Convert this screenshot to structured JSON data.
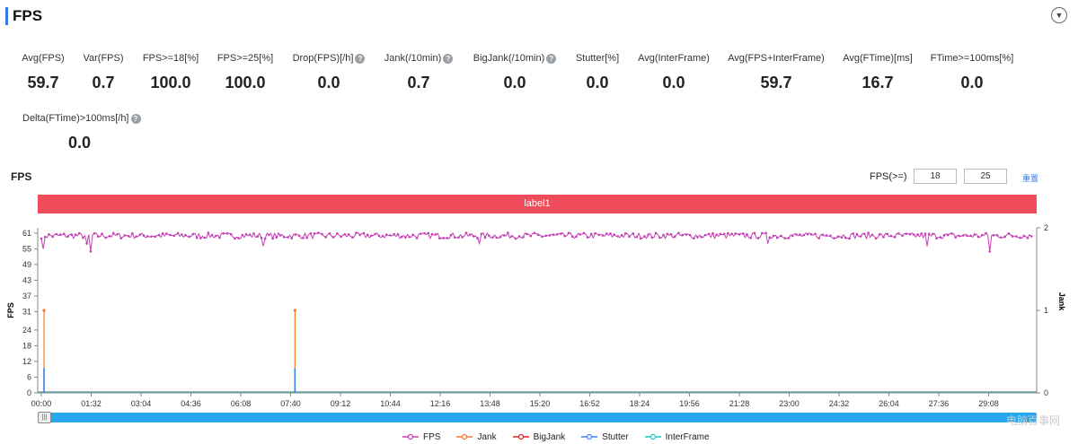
{
  "header": {
    "title": "FPS",
    "collapse_icon": "chevron-down-icon"
  },
  "metrics": [
    {
      "label": "Avg(FPS)",
      "value": "59.7",
      "help": false
    },
    {
      "label": "Var(FPS)",
      "value": "0.7",
      "help": false
    },
    {
      "label": "FPS>=18[%]",
      "value": "100.0",
      "help": false
    },
    {
      "label": "FPS>=25[%]",
      "value": "100.0",
      "help": false
    },
    {
      "label": "Drop(FPS)[/h]",
      "value": "0.0",
      "help": true
    },
    {
      "label": "Jank(/10min)",
      "value": "0.7",
      "help": true
    },
    {
      "label": "BigJank(/10min)",
      "value": "0.0",
      "help": true
    },
    {
      "label": "Stutter[%]",
      "value": "0.0",
      "help": false
    },
    {
      "label": "Avg(InterFrame)",
      "value": "0.0",
      "help": false
    },
    {
      "label": "Avg(FPS+InterFrame)",
      "value": "59.7",
      "help": false
    },
    {
      "label": "Avg(FTime)[ms]",
      "value": "16.7",
      "help": false
    },
    {
      "label": "FTime>=100ms[%]",
      "value": "0.0",
      "help": false
    },
    {
      "label": "Delta(FTime)>100ms[/h]",
      "value": "0.0",
      "help": true
    }
  ],
  "chart_section": {
    "title": "FPS",
    "threshold_label": "FPS(>=)",
    "threshold_low": "18",
    "threshold_high": "25",
    "reset_label": "重置",
    "band_label": "label1",
    "watermark": "电脑百事网"
  },
  "chart_data": {
    "type": "line",
    "x_tick_labels": [
      "00:00",
      "01:32",
      "03:04",
      "04:36",
      "06:08",
      "07:40",
      "09:12",
      "10:44",
      "12:16",
      "13:48",
      "15:20",
      "16:52",
      "18:24",
      "19:56",
      "21:28",
      "23:00",
      "24:32",
      "26:04",
      "27:36",
      "29:08"
    ],
    "x_range_seconds": [
      0,
      1830
    ],
    "ylabel": "FPS",
    "y_ticks": [
      0,
      6,
      12,
      18,
      24,
      31,
      37,
      43,
      49,
      55,
      61
    ],
    "y_range": [
      0,
      63
    ],
    "y2label": "Jank",
    "y2_ticks": [
      0,
      1,
      2
    ],
    "y2_range": [
      0,
      2
    ],
    "fps_baseline": 60,
    "fps_dips": [
      {
        "t": 5,
        "fps": 55
      },
      {
        "t": 90,
        "fps": 54
      },
      {
        "t": 84,
        "fps": 57
      },
      {
        "t": 410,
        "fps": 56
      },
      {
        "t": 810,
        "fps": 57
      },
      {
        "t": 1340,
        "fps": 57
      },
      {
        "t": 1635,
        "fps": 56
      },
      {
        "t": 1750,
        "fps": 54
      }
    ],
    "jank_events": [
      {
        "t": 5,
        "value": 1
      },
      {
        "t": 468,
        "value": 1
      }
    ],
    "stutter_events": [
      {
        "t": 5,
        "value": 0.3
      },
      {
        "t": 468,
        "value": 0.3
      }
    ],
    "series": [
      {
        "name": "FPS",
        "color": "#c43fb4"
      },
      {
        "name": "Jank",
        "color": "#f27a2a"
      },
      {
        "name": "BigJank",
        "color": "#e02424"
      },
      {
        "name": "Stutter",
        "color": "#3b82f6"
      },
      {
        "name": "InterFrame",
        "color": "#22c5c5"
      }
    ],
    "grid": false,
    "legend_position": "bottom"
  }
}
